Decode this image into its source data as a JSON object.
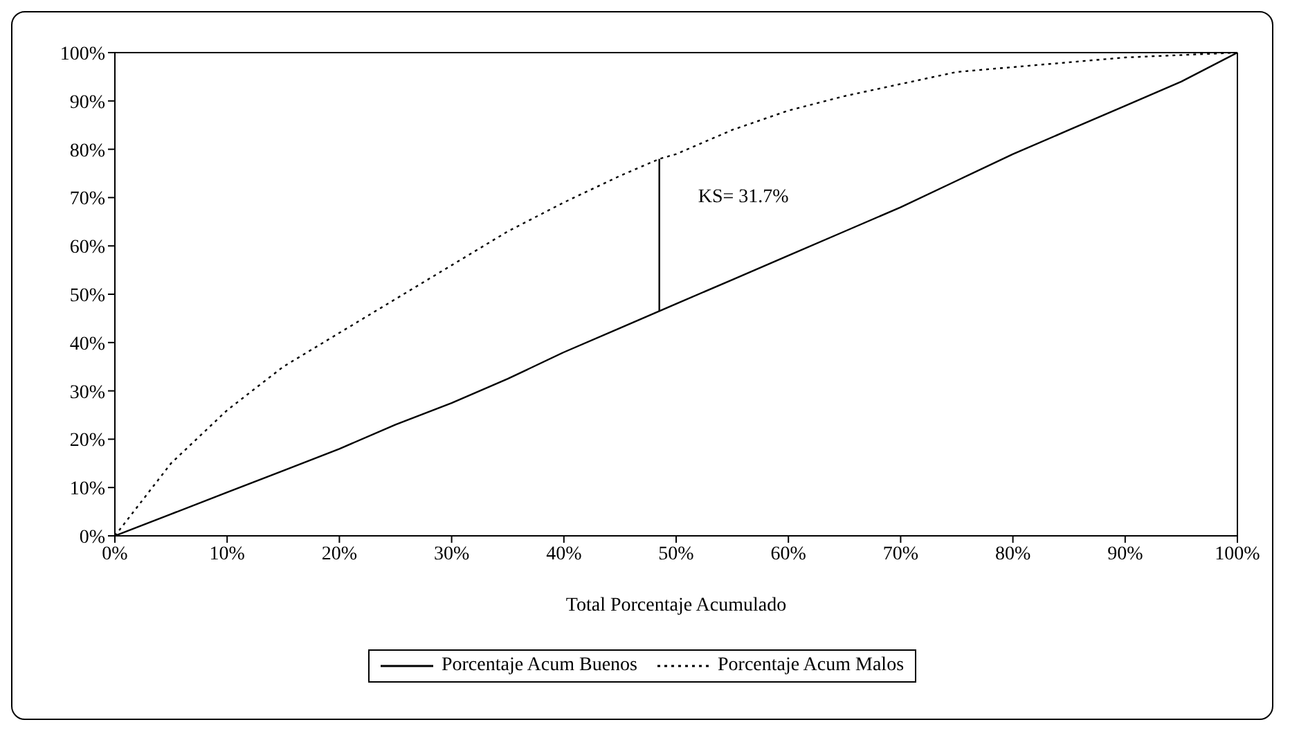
{
  "chart_data": {
    "type": "line",
    "xlabel": "Total Porcentaje Acumulado",
    "x": [
      0,
      5,
      10,
      15,
      20,
      25,
      30,
      35,
      40,
      45,
      48.5,
      50,
      55,
      60,
      65,
      70,
      75,
      80,
      85,
      90,
      95,
      100
    ],
    "series": [
      {
        "name": "Porcentaje Acum Buenos",
        "color": "#000000",
        "line_style": "solid",
        "values": [
          0,
          4.5,
          9,
          13.5,
          18,
          23,
          27.5,
          32.5,
          38,
          43,
          46.5,
          48,
          53,
          58,
          63,
          68,
          73.5,
          79,
          84,
          89,
          94,
          100
        ]
      },
      {
        "name": "Porcentaje Acum Malos",
        "color": "#000000",
        "line_style": "dotted",
        "values": [
          0,
          15,
          26,
          35,
          42,
          49,
          56,
          63,
          69,
          74.5,
          78,
          79,
          84,
          88,
          91,
          93.5,
          96,
          97,
          98,
          99,
          99.5,
          100
        ]
      },
      {
        "color": "#000000",
        "line_style": "solid",
        "x": [
          48.5,
          48.5
        ],
        "values": [
          46.5,
          78
        ]
      }
    ],
    "xlim": [
      0,
      100
    ],
    "xticks": [
      {
        "value": 0,
        "label": "0%"
      },
      {
        "value": 10,
        "label": "10%"
      },
      {
        "value": 20,
        "label": "20%"
      },
      {
        "value": 30,
        "label": "30%"
      },
      {
        "value": 40,
        "label": "40%"
      },
      {
        "value": 50,
        "label": "50%"
      },
      {
        "value": 60,
        "label": "60%"
      },
      {
        "value": 70,
        "label": "70%"
      },
      {
        "value": 80,
        "label": "80%"
      },
      {
        "value": 90,
        "label": "90%"
      },
      {
        "value": 100,
        "label": "100%"
      }
    ],
    "ylim": [
      0,
      100
    ],
    "yticks": [
      {
        "value": 0,
        "label": "0%"
      },
      {
        "value": 10,
        "label": "10%"
      },
      {
        "value": 20,
        "label": "20%"
      },
      {
        "value": 30,
        "label": "30%"
      },
      {
        "value": 40,
        "label": "40%"
      },
      {
        "value": 50,
        "label": "50%"
      },
      {
        "value": 60,
        "label": "60%"
      },
      {
        "value": 70,
        "label": "70%"
      },
      {
        "value": 80,
        "label": "80%"
      },
      {
        "value": 90,
        "label": "90%"
      },
      {
        "value": 100,
        "label": "100%"
      }
    ],
    "annotations": [
      {
        "text": "KS= 31.7%",
        "x": 48.5,
        "y": 78
      }
    ],
    "grid": false,
    "legend": "bottom",
    "marker": "none"
  }
}
